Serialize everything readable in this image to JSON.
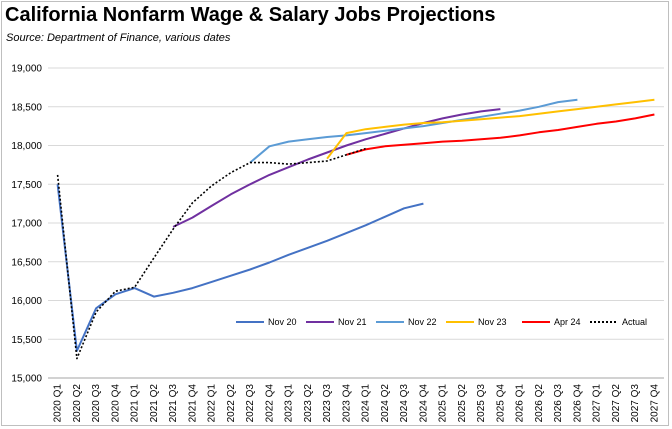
{
  "chart_data": {
    "type": "line",
    "title": "California Nonfarm Wage & Salary Jobs Projections",
    "subtitle": "Source:  Department of Finance, various dates",
    "xlabel": "",
    "ylabel": "",
    "ylim": [
      15000,
      19000
    ],
    "y_ticks": [
      "15,000",
      "15,500",
      "16,000",
      "16,500",
      "17,000",
      "17,500",
      "18,000",
      "18,500",
      "19,000"
    ],
    "y_tick_values": [
      15000,
      15500,
      16000,
      16500,
      17000,
      17500,
      18000,
      18500,
      19000
    ],
    "categories": [
      "2020 Q1",
      "2020 Q2",
      "2020 Q3",
      "2020 Q4",
      "2021 Q1",
      "2021 Q2",
      "2021 Q3",
      "2021 Q4",
      "2022 Q1",
      "2022 Q2",
      "2022 Q3",
      "2022 Q4",
      "2023 Q1",
      "2023 Q2",
      "2023 Q3",
      "2023 Q4",
      "2024 Q1",
      "2024 Q2",
      "2024 Q3",
      "2024 Q4",
      "2025 Q1",
      "2025 Q2",
      "2025 Q3",
      "2025 Q4",
      "2026 Q1",
      "2026 Q2",
      "2026 Q3",
      "2026 Q4",
      "2027 Q1",
      "2027 Q2",
      "2027 Q3",
      "2027 Q4"
    ],
    "grid": true,
    "legend_position": "bottom-right-inside",
    "series": [
      {
        "name": "Nov 20",
        "color": "#4472c4",
        "dash": "",
        "values": [
          17500,
          15350,
          15900,
          16080,
          16160,
          16050,
          16100,
          16160,
          16240,
          16320,
          16400,
          16490,
          16590,
          16680,
          16770,
          16870,
          16970,
          17080,
          17190,
          17250,
          null,
          null,
          null,
          null,
          null,
          null,
          null,
          null,
          null,
          null,
          null,
          null
        ]
      },
      {
        "name": "Nov 21",
        "color": "#7030a0",
        "dash": "",
        "values": [
          null,
          null,
          null,
          null,
          null,
          null,
          16950,
          17070,
          17220,
          17370,
          17500,
          17620,
          17720,
          17820,
          17910,
          18000,
          18080,
          18150,
          18220,
          18290,
          18350,
          18400,
          18440,
          18470,
          null,
          null,
          null,
          null,
          null,
          null,
          null,
          null
        ]
      },
      {
        "name": "Nov 22",
        "color": "#5b9bd5",
        "dash": "",
        "values": [
          null,
          null,
          null,
          null,
          null,
          null,
          null,
          null,
          null,
          null,
          17780,
          17990,
          18050,
          18080,
          18110,
          18130,
          18160,
          18190,
          18220,
          18250,
          18290,
          18330,
          18370,
          18410,
          18450,
          18500,
          18560,
          18590,
          null,
          null,
          null,
          null
        ]
      },
      {
        "name": "Nov 23",
        "color": "#ffc000",
        "dash": "",
        "values": [
          null,
          null,
          null,
          null,
          null,
          null,
          null,
          null,
          null,
          null,
          null,
          null,
          null,
          null,
          17830,
          18160,
          18210,
          18240,
          18270,
          18290,
          18300,
          18320,
          18340,
          18360,
          18380,
          18410,
          18440,
          18470,
          18500,
          18530,
          18560,
          18590
        ]
      },
      {
        "name": "Apr 24",
        "color": "#ff0000",
        "dash": "",
        "values": [
          null,
          null,
          null,
          null,
          null,
          null,
          null,
          null,
          null,
          null,
          null,
          null,
          null,
          null,
          null,
          17880,
          17950,
          17990,
          18010,
          18030,
          18050,
          18060,
          18080,
          18100,
          18130,
          18170,
          18200,
          18240,
          18280,
          18310,
          18350,
          18400
        ]
      },
      {
        "name": "Actual",
        "color": "#000000",
        "dash": "2,2",
        "values": [
          17620,
          15250,
          15850,
          16120,
          16170,
          16550,
          16920,
          17260,
          17480,
          17650,
          17780,
          17780,
          17760,
          17780,
          17800,
          17880,
          17960,
          null,
          null,
          null,
          null,
          null,
          null,
          null,
          null,
          null,
          null,
          null,
          null,
          null,
          null,
          null
        ]
      }
    ]
  }
}
